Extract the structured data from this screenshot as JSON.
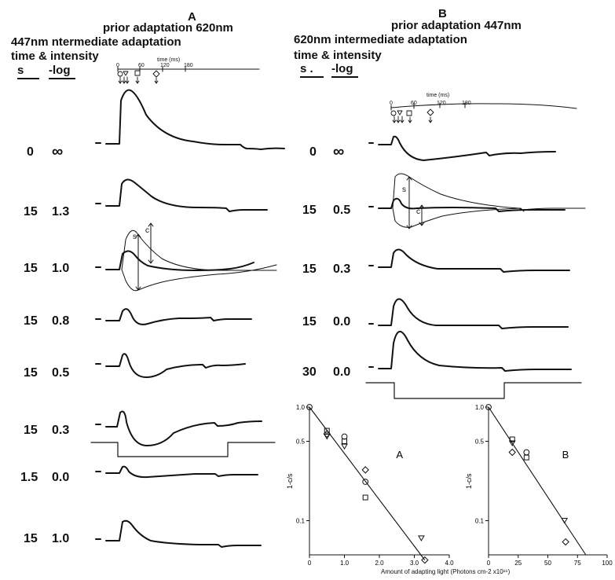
{
  "panel_a": {
    "letter": "A",
    "title": "prior adaptation 620nm",
    "subtitle": "447nm  ntermediate adaptation",
    "subtitle2": "time & intensity",
    "col_s": "s",
    "col_log": "-log",
    "rows": [
      {
        "time": "0",
        "intensity": "∞"
      },
      {
        "time": "15",
        "intensity": "1.3"
      },
      {
        "time": "15",
        "intensity": "1.0"
      },
      {
        "time": "15",
        "intensity": "0.8"
      },
      {
        "time": "15",
        "intensity": "0.5"
      },
      {
        "time": "15",
        "intensity": "0.3"
      },
      {
        "time": "1.5",
        "intensity": "0.0"
      },
      {
        "time": "15",
        "intensity": "1.0"
      }
    ],
    "time_axis": {
      "label": "time (ms)",
      "ticks": [
        "0",
        "60",
        "120",
        "180"
      ]
    },
    "annot_s": "s",
    "annot_c": "c"
  },
  "panel_b": {
    "letter": "B",
    "title": "prior adaptation 447nm",
    "subtitle": "620nm  intermediate adaptation",
    "subtitle2": "time & intensity",
    "col_s": "s .",
    "col_log": "-log",
    "rows": [
      {
        "time": "0",
        "intensity": "∞"
      },
      {
        "time": "15",
        "intensity": "0.5"
      },
      {
        "time": "15",
        "intensity": "0.3"
      },
      {
        "time": "15",
        "intensity": "0.0"
      },
      {
        "time": "30",
        "intensity": "0.0"
      }
    ],
    "time_axis": {
      "label": "time (ms)",
      "ticks": [
        "0",
        "60",
        "120",
        "180"
      ]
    },
    "annot_s": "s",
    "annot_c": "c"
  },
  "chart_data": [
    {
      "type": "scatter",
      "label": "A",
      "ylabel": "1-c/s",
      "y_scale": "log",
      "xlim": [
        0,
        4.0
      ],
      "ylim": [
        0.05,
        1.0
      ],
      "x_ticks": [
        "0",
        "1.0",
        "2.0",
        "3.0",
        "4.0"
      ],
      "y_ticks": [
        "1.0",
        "0.5",
        "0.1"
      ],
      "points": [
        {
          "x": 0.0,
          "y": 1.0
        },
        {
          "x": 0.5,
          "y": 0.62
        },
        {
          "x": 0.5,
          "y": 0.55
        },
        {
          "x": 0.5,
          "y": 0.58
        },
        {
          "x": 1.0,
          "y": 0.55
        },
        {
          "x": 1.0,
          "y": 0.5
        },
        {
          "x": 1.0,
          "y": 0.45
        },
        {
          "x": 1.6,
          "y": 0.28
        },
        {
          "x": 1.6,
          "y": 0.22
        },
        {
          "x": 1.6,
          "y": 0.16
        },
        {
          "x": 3.2,
          "y": 0.07
        },
        {
          "x": 3.3,
          "y": 0.045
        }
      ],
      "fit_line": [
        {
          "x": 0.0,
          "y": 1.0
        },
        {
          "x": 3.3,
          "y": 0.045
        }
      ]
    },
    {
      "type": "scatter",
      "label": "B",
      "ylabel": "1-c/s",
      "y_scale": "log",
      "xlim": [
        0,
        100
      ],
      "ylim": [
        0.05,
        1.0
      ],
      "x_ticks": [
        "0",
        "25",
        "50",
        "75",
        "100"
      ],
      "y_ticks": [
        "1.0",
        "0.5",
        "0.1"
      ],
      "points": [
        {
          "x": 0,
          "y": 1.0
        },
        {
          "x": 20,
          "y": 0.52
        },
        {
          "x": 20,
          "y": 0.48
        },
        {
          "x": 20,
          "y": 0.4
        },
        {
          "x": 32,
          "y": 0.4
        },
        {
          "x": 32,
          "y": 0.36
        },
        {
          "x": 64,
          "y": 0.1
        },
        {
          "x": 65,
          "y": 0.065
        }
      ],
      "fit_line": [
        {
          "x": 0,
          "y": 1.0
        },
        {
          "x": 82,
          "y": 0.05
        }
      ]
    }
  ],
  "x_axis_caption": "Amount of adapting light (Photons cm-2 x10¹⁶)"
}
